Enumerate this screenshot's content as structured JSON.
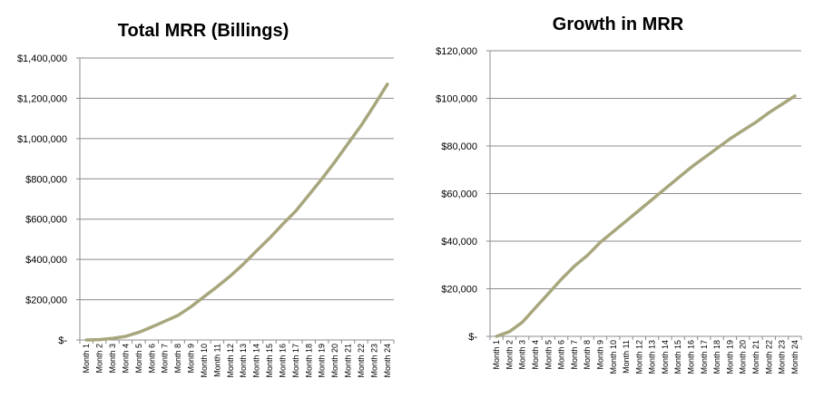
{
  "chart_data": [
    {
      "type": "line",
      "title": "Total MRR (Billings)",
      "xlabel": "",
      "ylabel": "",
      "ylim": [
        0,
        1400000
      ],
      "yticks": [
        0,
        200000,
        400000,
        600000,
        800000,
        1000000,
        1200000,
        1400000
      ],
      "ytick_labels": [
        "$-",
        "$200,000",
        "$400,000",
        "$600,000",
        "$800,000",
        "$1,000,000",
        "$1,200,000",
        "$1,400,000"
      ],
      "grid": true,
      "legend": "none",
      "categories": [
        "Month 1",
        "Month 2",
        "Month 3",
        "Month 4",
        "Month 5",
        "Month 6",
        "Month 7",
        "Month 8",
        "Month 9",
        "Month 10",
        "Month 11",
        "Month 12",
        "Month 13",
        "Month 14",
        "Month 15",
        "Month 16",
        "Month 17",
        "Month 18",
        "Month 19",
        "Month 20",
        "Month 21",
        "Month 22",
        "Month 23",
        "Month 24"
      ],
      "series": [
        {
          "color": "#a7a67c",
          "values": [
            0,
            2000,
            8000,
            18000,
            38000,
            65000,
            93000,
            122000,
            165000,
            215000,
            265000,
            318000,
            377000,
            442000,
            505000,
            575000,
            640000,
            720000,
            800000,
            885000,
            975000,
            1065000,
            1165000,
            1270000
          ]
        }
      ]
    },
    {
      "type": "line",
      "title": "Growth in MRR",
      "xlabel": "",
      "ylabel": "",
      "ylim": [
        0,
        120000
      ],
      "yticks": [
        0,
        20000,
        40000,
        60000,
        80000,
        100000,
        120000
      ],
      "ytick_labels": [
        "$-",
        "$20,000",
        "$40,000",
        "$60,000",
        "$80,000",
        "$100,000",
        "$120,000"
      ],
      "grid": true,
      "legend": "none",
      "categories": [
        "Month 1",
        "Month 2",
        "Month 3",
        "Month 4",
        "Month 5",
        "Month 6",
        "Month 7",
        "Month 8",
        "Month 9",
        "Month 10",
        "Month 11",
        "Month 12",
        "Month 13",
        "Month 14",
        "Month 15",
        "Month 16",
        "Month 17",
        "Month 18",
        "Month 19",
        "Month 20",
        "Month 21",
        "Month 22",
        "Month 23",
        "Month 24"
      ],
      "series": [
        {
          "color": "#a7a67c",
          "values": [
            0,
            2000,
            6000,
            12000,
            18000,
            24000,
            29500,
            34000,
            39500,
            44000,
            48500,
            53000,
            57500,
            62000,
            66500,
            71000,
            75000,
            79000,
            83000,
            86500,
            90000,
            94000,
            97500,
            101000
          ]
        }
      ]
    }
  ]
}
